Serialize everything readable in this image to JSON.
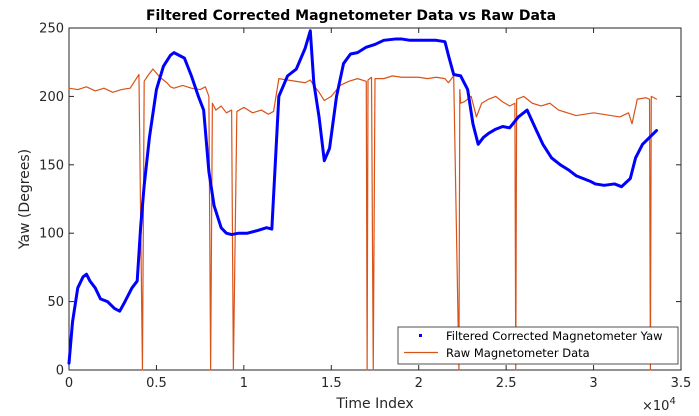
{
  "chart_data": {
    "type": "line",
    "title": "Filtered Corrected Magnetometer Data vs Raw Data",
    "xlabel": "Time Index",
    "ylabel": "Yaw (Degrees)",
    "x_exponent_label": "×10",
    "x_exponent_power": "4",
    "xlim": [
      0,
      35000
    ],
    "ylim": [
      0,
      250
    ],
    "x_ticks": [
      0,
      5000,
      10000,
      15000,
      20000,
      25000,
      30000,
      35000
    ],
    "x_tick_labels": [
      "0",
      "0.5",
      "1",
      "1.5",
      "2",
      "2.5",
      "3",
      "3.5"
    ],
    "y_ticks": [
      0,
      50,
      100,
      150,
      200,
      250
    ],
    "y_tick_labels": [
      "0",
      "50",
      "100",
      "150",
      "200",
      "250"
    ],
    "grid": false,
    "legend_position": "bottom-right",
    "series": [
      {
        "name": "Filtered Corrected Magnetometer Yaw",
        "color": "#0000ff",
        "style": "thick-dotted",
        "x": [
          0,
          200,
          500,
          800,
          1000,
          1200,
          1500,
          1800,
          2200,
          2600,
          2900,
          3200,
          3600,
          3900,
          4100,
          4300,
          4600,
          5000,
          5400,
          5800,
          6000,
          6300,
          6600,
          7000,
          7400,
          7700,
          8000,
          8300,
          8700,
          9000,
          9300,
          9700,
          10200,
          10800,
          11300,
          11600,
          12000,
          12500,
          13000,
          13500,
          13800,
          14000,
          14300,
          14600,
          14900,
          15300,
          15700,
          16100,
          16500,
          17000,
          17500,
          18000,
          18700,
          19000,
          19500,
          20000,
          20500,
          21000,
          21500,
          21700,
          22000,
          22400,
          22800,
          23100,
          23400,
          23700,
          24000,
          24400,
          24800,
          25200,
          25700,
          26200,
          26700,
          27100,
          27600,
          28100,
          28600,
          29000,
          29400,
          29800,
          30100,
          30600,
          31200,
          31600,
          32100,
          32400,
          32800,
          33200,
          33600
        ],
        "y": [
          5,
          35,
          60,
          68,
          70,
          65,
          60,
          52,
          50,
          45,
          43,
          50,
          60,
          65,
          105,
          135,
          170,
          205,
          222,
          230,
          232,
          230,
          228,
          215,
          200,
          190,
          145,
          120,
          104,
          100,
          99,
          100,
          100,
          102,
          104,
          103,
          200,
          215,
          220,
          235,
          248,
          210,
          185,
          153,
          162,
          200,
          224,
          231,
          232,
          236,
          238,
          241,
          242,
          242,
          241,
          241,
          241,
          241,
          240,
          230,
          216,
          215,
          205,
          180,
          165,
          170,
          173,
          176,
          178,
          177,
          185,
          190,
          176,
          165,
          155,
          150,
          146,
          142,
          140,
          138,
          136,
          135,
          136,
          134,
          140,
          155,
          165,
          170,
          175
        ]
      },
      {
        "name": "Raw Magnetometer Data",
        "color": "#d95319",
        "style": "line",
        "x": [
          0,
          500,
          1000,
          1500,
          2000,
          2500,
          3000,
          3500,
          3800,
          4000,
          4200,
          4300,
          4500,
          4800,
          5200,
          5600,
          5800,
          6000,
          6500,
          7000,
          7500,
          7800,
          8000,
          8100,
          8200,
          8400,
          8700,
          9000,
          9300,
          9400,
          9600,
          10000,
          10500,
          11000,
          11400,
          11700,
          12000,
          12500,
          13000,
          13500,
          13800,
          14000,
          14300,
          14600,
          15000,
          15500,
          16000,
          16500,
          17000,
          17050,
          17100,
          17300,
          17400,
          17500,
          18000,
          18500,
          19000,
          19500,
          20000,
          20500,
          21000,
          21500,
          21700,
          22000,
          22300,
          22350,
          22400,
          22600,
          23000,
          23300,
          23600,
          24000,
          24400,
          24800,
          25200,
          25500,
          25550,
          25600,
          26000,
          26500,
          27000,
          27500,
          28000,
          28500,
          29000,
          29500,
          30000,
          30500,
          31000,
          31500,
          32000,
          32200,
          32500,
          33000,
          33200,
          33250,
          33300,
          33600
        ],
        "y": [
          206,
          205,
          207,
          204,
          206,
          203,
          205,
          206,
          212,
          216,
          0,
          211,
          215,
          220,
          214,
          210,
          207,
          206,
          208,
          206,
          205,
          207,
          200,
          0,
          195,
          190,
          193,
          188,
          190,
          0,
          189,
          192,
          188,
          190,
          187,
          189,
          213,
          212,
          211,
          210,
          212,
          208,
          203,
          197,
          200,
          208,
          211,
          213,
          211,
          0,
          212,
          214,
          0,
          213,
          213,
          215,
          214,
          214,
          214,
          213,
          214,
          213,
          210,
          215,
          0,
          205,
          195,
          196,
          200,
          185,
          195,
          198,
          200,
          196,
          193,
          195,
          0,
          198,
          200,
          195,
          193,
          195,
          190,
          188,
          186,
          187,
          188,
          187,
          186,
          185,
          188,
          180,
          198,
          199,
          198,
          0,
          200,
          198
        ]
      }
    ]
  }
}
